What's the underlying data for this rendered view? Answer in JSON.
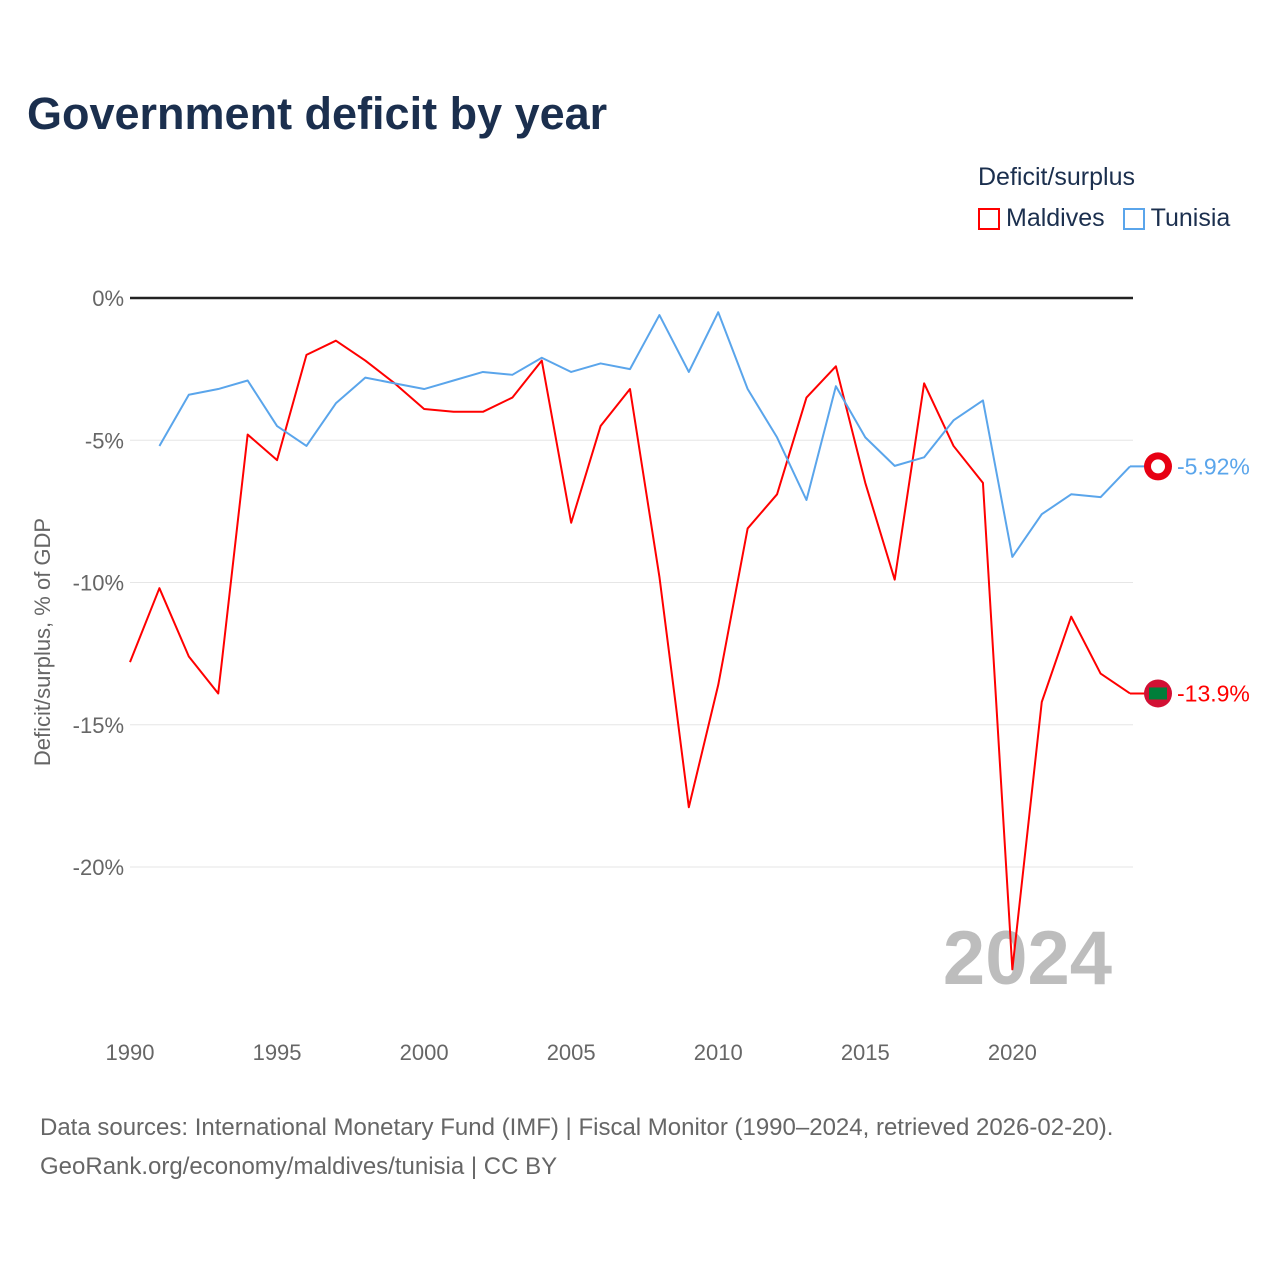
{
  "chart_data": {
    "type": "line",
    "title": "Government deficit by year",
    "xlabel": "",
    "ylabel": "Deficit/surplus, % of GDP",
    "legend_title": "Deficit/surplus",
    "legend_placement": "top-right",
    "xlim": [
      1990,
      2024
    ],
    "ylim": [
      -25,
      0
    ],
    "x_ticks": [
      1990,
      1995,
      2000,
      2005,
      2010,
      2015,
      2020
    ],
    "y_ticks": [
      0,
      -5,
      -10,
      -15,
      -20
    ],
    "y_tick_labels": [
      "0%",
      "-5%",
      "-10%",
      "-15%",
      "-20%"
    ],
    "year_watermark": "2024",
    "series": [
      {
        "name": "Maldives",
        "color": "#ff0000",
        "end_label": "-13.9%",
        "x": [
          1990,
          1991,
          1992,
          1993,
          1994,
          1995,
          1996,
          1997,
          1998,
          1999,
          2000,
          2001,
          2002,
          2003,
          2004,
          2005,
          2006,
          2007,
          2008,
          2009,
          2010,
          2011,
          2012,
          2013,
          2014,
          2015,
          2016,
          2017,
          2018,
          2019,
          2020,
          2021,
          2022,
          2023,
          2024
        ],
        "values": [
          -12.8,
          -10.2,
          -12.6,
          -13.9,
          -4.8,
          -5.7,
          -2.0,
          -1.5,
          -2.2,
          -3.0,
          -3.9,
          -4.0,
          -4.0,
          -3.5,
          -2.2,
          -7.9,
          -4.5,
          -3.2,
          -9.8,
          -17.9,
          -13.6,
          -8.1,
          -6.9,
          -3.5,
          -2.4,
          -6.5,
          -9.9,
          -3.0,
          -5.2,
          -6.5,
          -23.6,
          -14.2,
          -11.2,
          -13.2,
          -13.9
        ]
      },
      {
        "name": "Tunisia",
        "color": "#5aa5eb",
        "end_label": "-5.92%",
        "x": [
          1991,
          1992,
          1993,
          1994,
          1995,
          1996,
          1997,
          1998,
          1999,
          2000,
          2001,
          2002,
          2003,
          2004,
          2005,
          2006,
          2007,
          2008,
          2009,
          2010,
          2011,
          2012,
          2013,
          2014,
          2015,
          2016,
          2017,
          2018,
          2019,
          2020,
          2021,
          2022,
          2023,
          2024
        ],
        "values": [
          -5.2,
          -3.4,
          -3.2,
          -2.9,
          -4.5,
          -5.2,
          -3.7,
          -2.8,
          -3.0,
          -3.2,
          -2.9,
          -2.6,
          -2.7,
          -2.1,
          -2.6,
          -2.3,
          -2.5,
          -0.6,
          -2.6,
          -0.5,
          -3.2,
          -4.9,
          -7.1,
          -3.1,
          -4.9,
          -5.9,
          -5.6,
          -4.3,
          -3.6,
          -9.1,
          -7.6,
          -6.9,
          -7.0,
          -5.92
        ]
      }
    ]
  },
  "source": {
    "line1": "Data sources: International Monetary Fund (IMF) | Fiscal Monitor (1990–2024, retrieved 2026-02-20).",
    "line2": "GeoRank.org/economy/maldives/tunisia | CC BY"
  }
}
